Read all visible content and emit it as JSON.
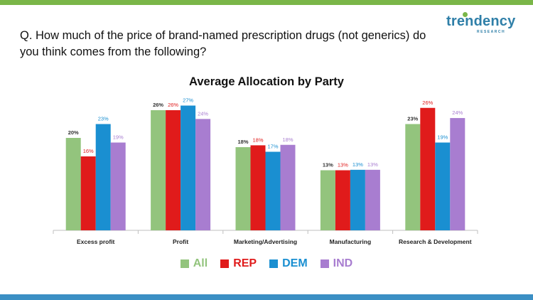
{
  "header": {
    "question": "Q. How much of the price of brand-named prescription drugs (not generics) do you think comes from the following?"
  },
  "logo": {
    "name": "trendency",
    "sub": "RESEARCH"
  },
  "colors": {
    "top_bar": "#7ab648",
    "bottom_bar": "#3b8fc4"
  },
  "chart_data": {
    "type": "bar",
    "title": "Average Allocation by Party",
    "xlabel": "",
    "ylabel": "",
    "ylim": [
      0,
      30
    ],
    "categories": [
      "Excess profit",
      "Profit",
      "Marketing/Advertising",
      "Manufacturing",
      "Research & Development"
    ],
    "series": [
      {
        "name": "All",
        "color": "#93c47d",
        "labels": [
          "20%",
          "26%",
          "18%",
          "13%",
          "23%"
        ],
        "values": [
          20,
          26,
          18,
          13,
          23
        ]
      },
      {
        "name": "REP",
        "color": "#e01b1b",
        "labels": [
          "16%",
          "26%",
          "18%",
          "13%",
          "26%"
        ],
        "values": [
          16,
          26,
          18.4,
          13,
          26.5
        ]
      },
      {
        "name": "DEM",
        "color": "#1a8fd1",
        "labels": [
          "23%",
          "27%",
          "17%",
          "13%",
          "19%"
        ],
        "values": [
          23,
          27,
          17,
          13.1,
          19
        ]
      },
      {
        "name": "IND",
        "color": "#a87dd0",
        "labels": [
          "19%",
          "24%",
          "18%",
          "13%",
          "24%"
        ],
        "values": [
          19,
          24.1,
          18.5,
          13.1,
          24.3
        ]
      }
    ],
    "grid": false,
    "legend": "bottom-center"
  }
}
